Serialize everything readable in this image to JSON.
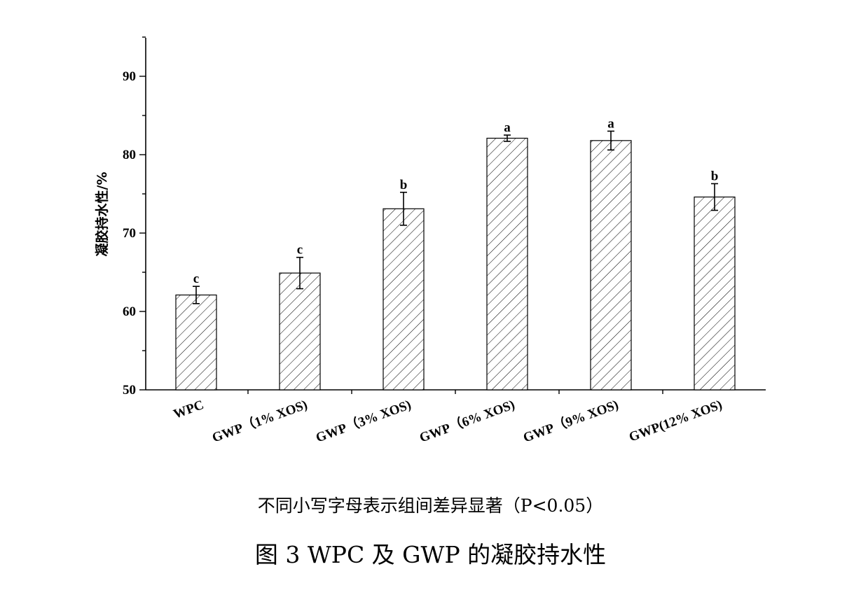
{
  "chart_data": {
    "type": "bar",
    "categories": [
      "WPC",
      "GWP（1% XOS)",
      "GWP（3% XOS)",
      "GWP（6% XOS)",
      "GWP（9% XOS)",
      "GWP(12% XOS)"
    ],
    "values": [
      62.1,
      64.9,
      73.1,
      82.1,
      81.8,
      74.6
    ],
    "errors": [
      1.1,
      2.0,
      2.1,
      0.4,
      1.2,
      1.7
    ],
    "significance_letters": [
      "c",
      "c",
      "b",
      "a",
      "a",
      "b"
    ],
    "ylabel": "凝胶持水性/%",
    "xlabel": "",
    "ylim": [
      50,
      95
    ],
    "yticks": [
      50,
      60,
      70,
      80,
      90
    ],
    "bar_fill": "diagonal-hatch",
    "bar_color": "#ffffff",
    "edge_color": "#000000",
    "grid": false,
    "legend": false
  },
  "note": "不同小写字母表示组间差异显著（P<0.05）",
  "caption": "图 3 WPC 及 GWP 的凝胶持水性"
}
